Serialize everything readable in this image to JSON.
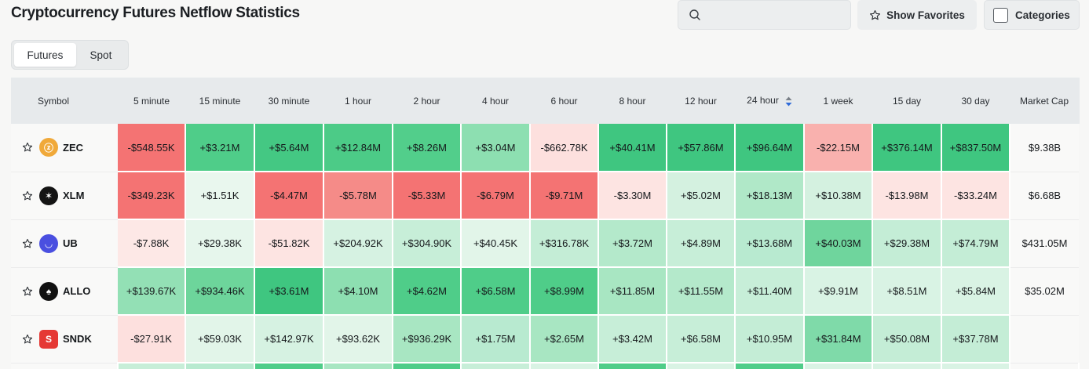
{
  "page_title": "Cryptocurrency Futures Netflow Statistics",
  "search": {
    "placeholder": ""
  },
  "favorites_button": {
    "label": "Show Favorites"
  },
  "categories_button": {
    "label": "Categories"
  },
  "market_tabs": [
    {
      "label": "Futures",
      "selected": true
    },
    {
      "label": "Spot",
      "selected": false
    }
  ],
  "table": {
    "headers": [
      "Symbol",
      "5 minute",
      "15 minute",
      "30 minute",
      "1 hour",
      "2 hour",
      "4 hour",
      "6 hour",
      "8 hour",
      "12 hour",
      "24 hour",
      "1 week",
      "15 day",
      "30 day",
      "Market Cap"
    ],
    "sorted_column": "24 hour",
    "rows": [
      {
        "symbol": "ZEC",
        "icon": "zec-coin-icon",
        "icon_color": "#f0a93a",
        "icon_glyph": "ⓩ",
        "values": [
          "-$548.55K",
          "+$3.21M",
          "+$5.64M",
          "+$12.84M",
          "+$8.26M",
          "+$3.04M",
          "-$662.78K",
          "+$40.41M",
          "+$57.86M",
          "+$96.64M",
          "-$22.15M",
          "+$376.14M",
          "+$837.50M"
        ],
        "colors": [
          "#f47373",
          "#4fcd89",
          "#44c883",
          "#4ccb87",
          "#52ce8b",
          "#8ddfb1",
          "#fde0de",
          "#3fc680",
          "#3fc680",
          "#3fc680",
          "#f9b1ae",
          "#3fc680",
          "#3fc680"
        ],
        "market_cap": "$9.38B"
      },
      {
        "symbol": "XLM",
        "icon": "xlm-coin-icon",
        "icon_color": "#141414",
        "icon_glyph": "✶",
        "values": [
          "-$349.23K",
          "+$1.51K",
          "-$4.47M",
          "-$5.78M",
          "-$5.33M",
          "-$6.79M",
          "-$9.71M",
          "-$3.30M",
          "+$5.02M",
          "+$18.13M",
          "+$10.38M",
          "-$13.98M",
          "-$33.24M"
        ],
        "colors": [
          "#f47373",
          "#e9f7ee",
          "#f47373",
          "#f58b88",
          "#f47373",
          "#f47373",
          "#f47373",
          "#fde4e2",
          "#d4f1e0",
          "#b0e8c8",
          "#d4f1e0",
          "#fde4e2",
          "#fde4e2"
        ],
        "market_cap": "$6.68B"
      },
      {
        "symbol": "UB",
        "icon": "ub-coin-icon",
        "icon_color": "#4a4fe0",
        "icon_glyph": "◡",
        "values": [
          "-$7.88K",
          "+$29.38K",
          "-$51.82K",
          "+$204.92K",
          "+$304.90K",
          "+$40.45K",
          "+$316.78K",
          "+$3.72M",
          "+$4.89M",
          "+$13.68M",
          "+$40.03M",
          "+$29.38M",
          "+$74.79M"
        ],
        "colors": [
          "#fde8e6",
          "#e6f6ec",
          "#fde4e2",
          "#d6f2e2",
          "#c7eed8",
          "#e2f5e9",
          "#c4edd6",
          "#b4e9cb",
          "#c7eed8",
          "#b8ead0",
          "#6fd59d",
          "#c4edd6",
          "#c4edd6"
        ],
        "market_cap": "$431.05M"
      },
      {
        "symbol": "ALLO",
        "icon": "allo-coin-icon",
        "icon_color": "#111111",
        "icon_glyph": "♠",
        "values": [
          "+$139.67K",
          "+$934.46K",
          "+$3.61M",
          "+$4.10M",
          "+$4.62M",
          "+$6.58M",
          "+$8.99M",
          "+$11.85M",
          "+$11.55M",
          "+$11.40M",
          "+$9.91M",
          "+$8.51M",
          "+$5.84M"
        ],
        "colors": [
          "#93e0b5",
          "#6dd59b",
          "#3fc680",
          "#8ddfb1",
          "#4fcd89",
          "#4fcd89",
          "#4fcd89",
          "#a8e6c2",
          "#b4e9cb",
          "#c7eed8",
          "#d9f3e4",
          "#d9f3e4",
          "#d9f3e4"
        ],
        "market_cap": "$35.02M"
      },
      {
        "symbol": "SNDK",
        "icon": "sndk-coin-icon",
        "icon_color": "#e53935",
        "icon_glyph": "S",
        "values": [
          "-$27.91K",
          "+$59.03K",
          "+$142.97K",
          "+$93.62K",
          "+$936.29K",
          "+$1.75M",
          "+$2.65M",
          "+$3.42M",
          "+$6.58M",
          "+$10.95M",
          "+$31.84M",
          "+$50.08M",
          "+$37.78M"
        ],
        "colors": [
          "#fde0de",
          "#e2f5e9",
          "#d6f2e2",
          "#e2f5e9",
          "#a8e6c2",
          "#b8ead0",
          "#a8e6c2",
          "#c7eed8",
          "#c7eed8",
          "#c4edd6",
          "#7fda a9",
          "#c4edd6",
          "#c4edd6"
        ],
        "market_cap": ""
      }
    ]
  }
}
